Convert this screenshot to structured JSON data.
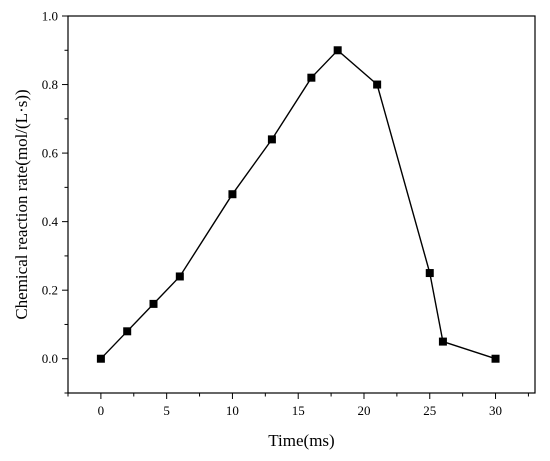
{
  "chart_data": {
    "type": "line",
    "title": "",
    "xlabel": "Time(ms)",
    "ylabel": "Chemical reaction rate(mol/(L·s))",
    "xlim": [
      -2.5,
      33
    ],
    "ylim": [
      -0.1,
      1.0
    ],
    "x_ticks": [
      0,
      5,
      10,
      15,
      20,
      25,
      30
    ],
    "x_tick_labels": [
      "0",
      "5",
      "10",
      "15",
      "20",
      "25",
      "30"
    ],
    "y_ticks": [
      0.0,
      0.2,
      0.4,
      0.6,
      0.8,
      1.0
    ],
    "y_tick_labels": [
      "0.0",
      "0.2",
      "0.4",
      "0.6",
      "0.8",
      "1.0"
    ],
    "grid": false,
    "legend": "none",
    "marker": "square",
    "color": "#000000",
    "series": [
      {
        "x": [
          0,
          2,
          4,
          6,
          10,
          13,
          16,
          18,
          21,
          25,
          26,
          30
        ],
        "y": [
          0.0,
          0.08,
          0.16,
          0.24,
          0.48,
          0.64,
          0.82,
          0.9,
          0.8,
          0.25,
          0.05,
          0.0
        ]
      }
    ]
  }
}
